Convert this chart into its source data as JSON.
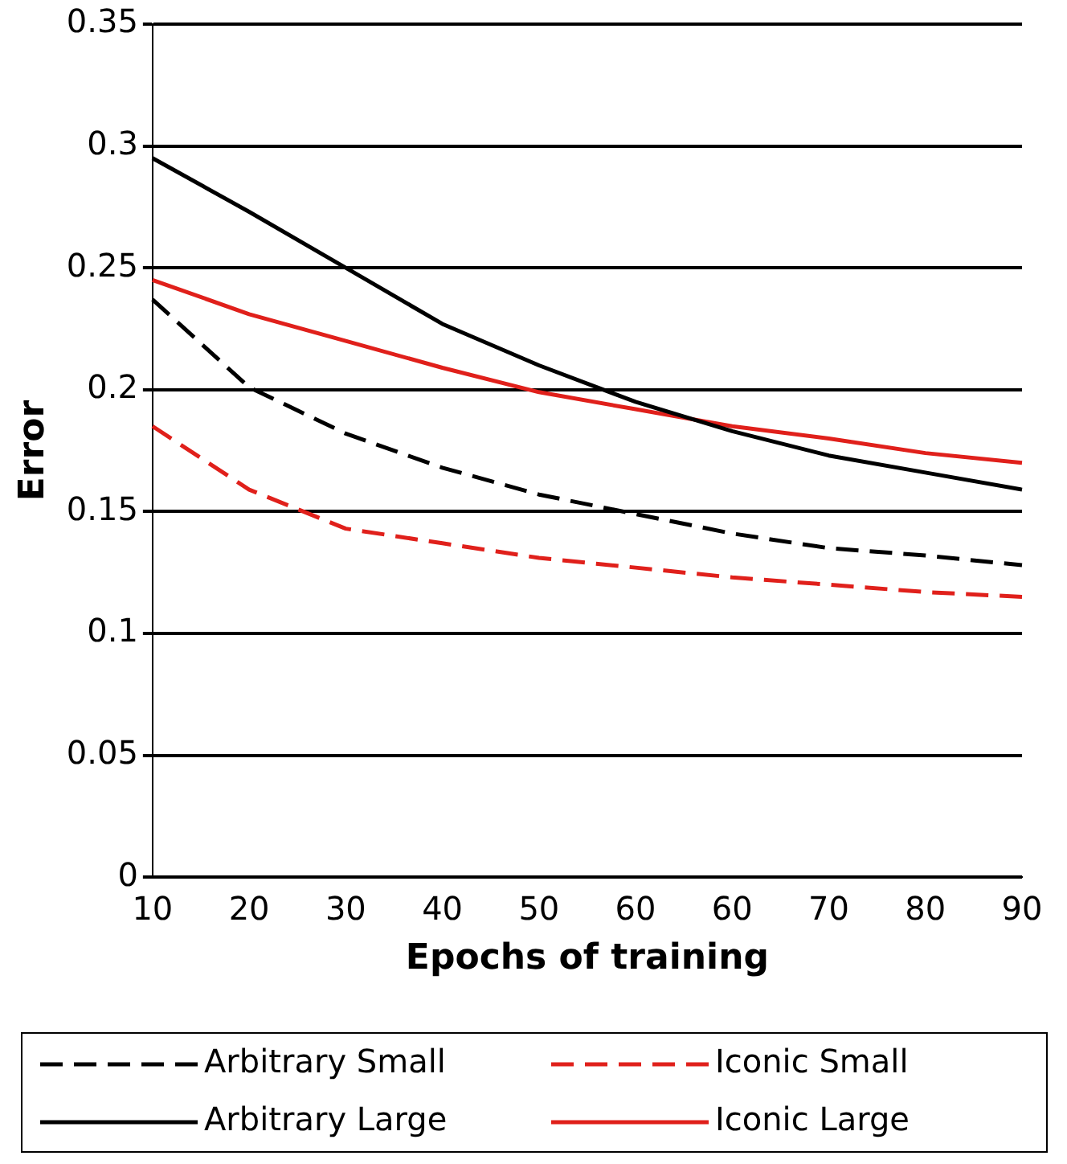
{
  "chart_data": {
    "type": "line",
    "xlabel": "Epochs of training",
    "ylabel": "Error",
    "categories": [
      "10",
      "20",
      "30",
      "40",
      "50",
      "60",
      "60",
      "70",
      "80",
      "90"
    ],
    "ylim": [
      0,
      0.35
    ],
    "yticks": [
      0,
      0.05,
      0.1,
      0.15,
      0.2,
      0.25,
      0.3,
      0.35
    ],
    "grid": "y",
    "legend": "bottom",
    "marker": "none",
    "series": [
      {
        "name": "Arbitrary Small",
        "color": "#000000",
        "line_style": "dashed",
        "values": [
          0.237,
          0.201,
          0.182,
          0.168,
          0.157,
          0.149,
          0.141,
          0.135,
          0.132,
          0.128
        ]
      },
      {
        "name": "Iconic Small",
        "color": "#e0201b",
        "line_style": "dashed",
        "values": [
          0.185,
          0.159,
          0.143,
          0.137,
          0.131,
          0.127,
          0.123,
          0.12,
          0.117,
          0.115
        ]
      },
      {
        "name": "Arbitrary Large",
        "color": "#000000",
        "line_style": "solid",
        "values": [
          0.295,
          0.273,
          0.25,
          0.227,
          0.21,
          0.195,
          0.183,
          0.173,
          0.166,
          0.159
        ]
      },
      {
        "name": "Iconic Large",
        "color": "#e0201b",
        "line_style": "solid",
        "values": [
          0.245,
          0.231,
          0.22,
          0.209,
          0.199,
          0.192,
          0.185,
          0.18,
          0.174,
          0.17
        ]
      }
    ]
  }
}
